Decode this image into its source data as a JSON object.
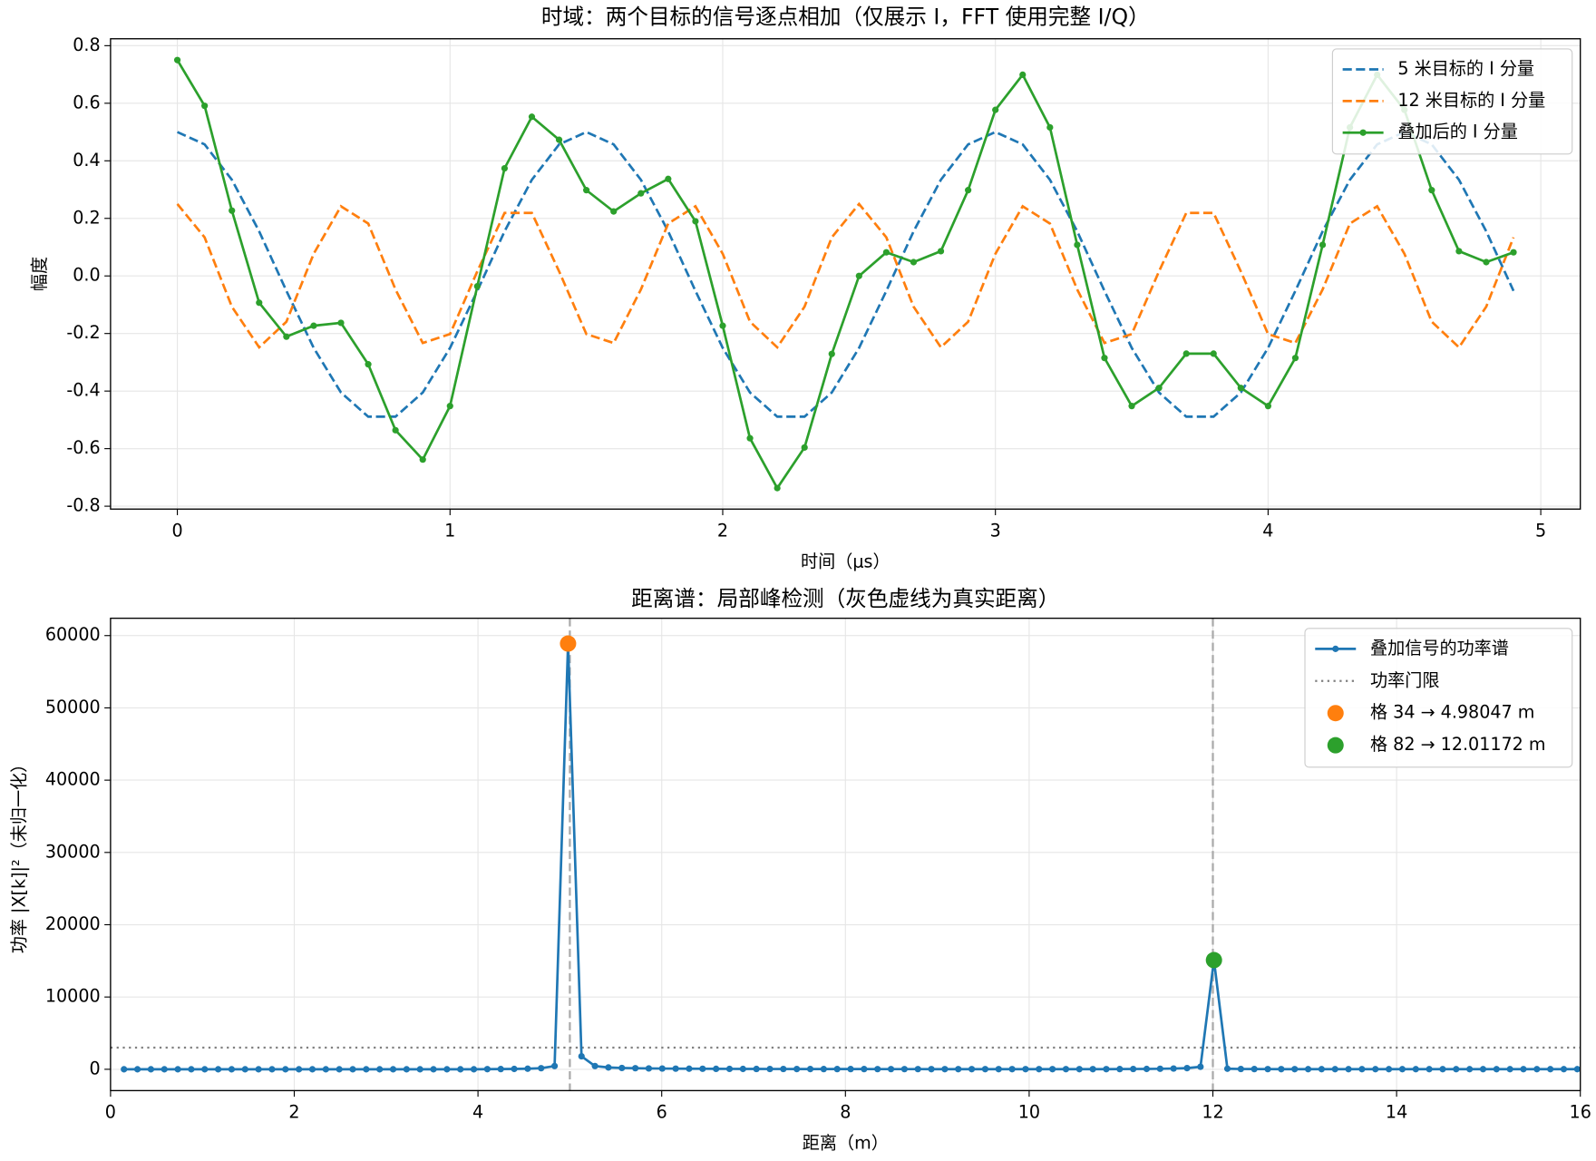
{
  "chart_data": [
    {
      "type": "line",
      "title": "时域：两个目标的信号逐点相加（仅展示 I，FFT 使用完整 I/Q）",
      "xlabel": "时间（μs）",
      "ylabel": "幅度",
      "x": [
        0,
        0.1,
        0.2,
        0.3,
        0.4,
        0.5,
        0.6,
        0.7,
        0.8,
        0.9,
        1.0,
        1.1,
        1.2,
        1.3,
        1.4,
        1.5,
        1.6,
        1.7,
        1.8,
        1.9,
        2.0,
        2.1,
        2.2,
        2.3,
        2.4,
        2.5,
        2.6,
        2.7,
        2.8,
        2.9,
        3.0,
        3.1,
        3.2,
        3.3,
        3.4,
        3.5,
        3.6,
        3.7,
        3.8,
        3.9,
        4.0,
        4.1,
        4.2,
        4.3,
        4.4,
        4.5,
        4.6,
        4.7,
        4.8,
        4.9
      ],
      "series": [
        {
          "name": "5 米目标的 I 分量",
          "color": "#1f77b4",
          "linestyle": "dashed",
          "marker": false,
          "values": [
            0.5,
            0.457,
            0.334,
            0.155,
            -0.052,
            -0.25,
            -0.405,
            -0.489,
            -0.489,
            -0.405,
            -0.25,
            -0.052,
            0.155,
            0.334,
            0.457,
            0.5,
            0.457,
            0.334,
            0.155,
            -0.052,
            -0.25,
            -0.405,
            -0.489,
            -0.489,
            -0.405,
            -0.25,
            -0.052,
            0.155,
            0.334,
            0.457,
            0.5,
            0.457,
            0.334,
            0.155,
            -0.052,
            -0.25,
            -0.405,
            -0.489,
            -0.489,
            -0.405,
            -0.25,
            -0.052,
            0.155,
            0.334,
            0.457,
            0.5,
            0.457,
            0.334,
            0.155,
            -0.052
          ]
        },
        {
          "name": "12 米目标的 I 分量",
          "color": "#ff7f0e",
          "linestyle": "dashed",
          "marker": false,
          "values": [
            0.25,
            0.134,
            -0.107,
            -0.248,
            -0.159,
            0.077,
            0.242,
            0.182,
            -0.047,
            -0.233,
            -0.202,
            0.016,
            0.219,
            0.219,
            0.016,
            -0.202,
            -0.233,
            -0.047,
            0.182,
            0.242,
            0.077,
            -0.159,
            -0.248,
            -0.107,
            0.134,
            0.25,
            0.134,
            -0.107,
            -0.248,
            -0.159,
            0.077,
            0.242,
            0.182,
            -0.047,
            -0.233,
            -0.202,
            0.016,
            0.219,
            0.219,
            0.016,
            -0.202,
            -0.233,
            -0.047,
            0.182,
            0.242,
            0.077,
            -0.159,
            -0.248,
            -0.107,
            0.134
          ]
        },
        {
          "name": "叠加后的 I 分量",
          "color": "#2ca02c",
          "linestyle": "solid",
          "marker": true,
          "values": [
            0.75,
            0.591,
            0.227,
            -0.093,
            -0.211,
            -0.173,
            -0.163,
            -0.307,
            -0.536,
            -0.638,
            -0.452,
            -0.036,
            0.374,
            0.553,
            0.473,
            0.298,
            0.224,
            0.287,
            0.337,
            0.19,
            -0.173,
            -0.564,
            -0.737,
            -0.596,
            -0.271,
            0,
            0.082,
            0.048,
            0.086,
            0.298,
            0.577,
            0.699,
            0.516,
            0.108,
            -0.285,
            -0.452,
            -0.389,
            -0.27,
            -0.27,
            -0.389,
            -0.452,
            -0.285,
            0.108,
            0.516,
            0.699,
            0.577,
            0.298,
            0.086,
            0.048,
            0.082
          ]
        }
      ],
      "xlim": [
        -0.245,
        5.145
      ],
      "ylim": [
        -0.81,
        0.824
      ],
      "xticks": [
        0,
        1,
        2,
        3,
        4,
        5
      ],
      "yticks": [
        -0.8,
        -0.6,
        -0.4,
        -0.2,
        {
          "value": 0,
          "label": "0.0"
        },
        0.2,
        0.4,
        0.6,
        0.8
      ],
      "grid": true,
      "legend": "upper right"
    },
    {
      "type": "line",
      "title": "距离谱：局部峰检测（灰色虚线为真实距离）",
      "xlabel": "距离（m）",
      "ylabel": "功率 |X[k]|²（未归一化）",
      "x": [
        0.1465,
        0.293,
        0.4395,
        0.5859,
        0.7324,
        0.8789,
        1.0254,
        1.1719,
        1.3184,
        1.4648,
        1.6113,
        1.7578,
        1.9043,
        2.0508,
        2.1973,
        2.3438,
        2.4902,
        2.6367,
        2.7832,
        2.9297,
        3.0762,
        3.2227,
        3.3691,
        3.5156,
        3.6621,
        3.8086,
        3.9551,
        4.1016,
        4.248,
        4.3945,
        4.541,
        4.6875,
        4.834,
        4.9805,
        5.127,
        5.2734,
        5.4199,
        5.5664,
        5.7129,
        5.8594,
        6.0059,
        6.1523,
        6.2988,
        6.4453,
        6.5918,
        6.7383,
        6.8848,
        7.0313,
        7.1777,
        7.3242,
        7.4707,
        7.6172,
        7.7637,
        7.9102,
        8.0566,
        8.2031,
        8.3496,
        8.4961,
        8.6426,
        8.7891,
        8.9355,
        9.082,
        9.2285,
        9.375,
        9.5215,
        9.668,
        9.8145,
        9.9609,
        10.1074,
        10.2539,
        10.4004,
        10.5469,
        10.6934,
        10.8398,
        10.9863,
        11.1328,
        11.2793,
        11.4258,
        11.5723,
        11.7188,
        11.8652,
        12.0117,
        12.1582,
        12.3047,
        12.4512,
        12.5977,
        12.7441,
        12.8906,
        13.0371,
        13.1836,
        13.3301,
        13.4766,
        13.623,
        13.7695,
        13.916,
        14.0625,
        14.209,
        14.3555,
        14.502,
        14.6484,
        14.7949,
        14.9414,
        15.0879,
        15.2344,
        15.3809,
        15.5273,
        15.6738,
        15.8203,
        15.9668
      ],
      "series": [
        {
          "name": "叠加信号的功率谱",
          "color": "#1f77b4",
          "linestyle": "solid",
          "marker": true,
          "values": [
            0,
            0,
            0,
            0,
            0,
            0,
            0,
            0,
            0,
            0,
            0,
            0,
            0,
            0,
            0,
            0,
            0,
            0,
            0,
            0,
            0,
            0,
            0,
            0,
            0,
            0,
            0,
            20,
            30,
            50,
            80,
            150,
            450,
            58900,
            1800,
            450,
            250,
            180,
            150,
            120,
            100,
            90,
            80,
            70,
            60,
            55,
            50,
            45,
            40,
            40,
            35,
            35,
            30,
            30,
            30,
            30,
            25,
            25,
            25,
            25,
            20,
            20,
            20,
            20,
            20,
            20,
            20,
            20,
            20,
            20,
            20,
            20,
            20,
            20,
            30,
            40,
            50,
            70,
            100,
            160,
            350,
            15100,
            80,
            40,
            30,
            25,
            20,
            20,
            15,
            15,
            15,
            15,
            15,
            15,
            15,
            15,
            15,
            15,
            15,
            15,
            15,
            15,
            15,
            15,
            15,
            15,
            15,
            15,
            15
          ]
        }
      ],
      "threshold": {
        "name": "功率门限",
        "value": 3000,
        "color": "#808080"
      },
      "peaks": [
        {
          "name": "格 34 → 4.98047 m",
          "x": 4.98047,
          "value": 58900,
          "color": "#ff7f0e"
        },
        {
          "name": "格 82 → 12.01172 m",
          "x": 12.01172,
          "value": 15100,
          "color": "#2ca02c"
        }
      ],
      "true_distances": [
        5,
        12
      ],
      "xlim": [
        0,
        16
      ],
      "ylim": [
        -2950,
        62400
      ],
      "xticks": [
        0,
        2,
        4,
        6,
        8,
        10,
        12,
        14,
        16
      ],
      "yticks": [
        0,
        10000,
        20000,
        30000,
        40000,
        50000,
        60000
      ],
      "grid": true,
      "legend": "upper right"
    }
  ]
}
